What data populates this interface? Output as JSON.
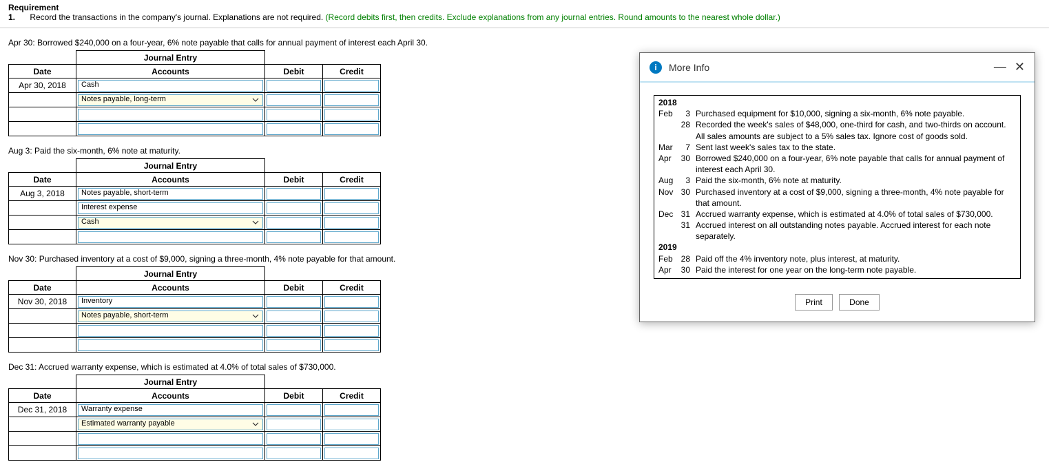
{
  "requirement": {
    "title": "Requirement",
    "num": "1.",
    "text": "Record the transactions in the company's journal. Explanations are not required. ",
    "hint": "(Record debits first, then credits. Exclude explanations from any journal entries. Round amounts to the nearest whole dollar.)"
  },
  "entries": [
    {
      "label": "Apr 30: Borrowed $240,000 on a four-year, 6% note payable that calls for annual payment of interest each April 30.",
      "title": "Journal Entry",
      "date": "Apr 30, 2018",
      "rows": [
        {
          "acct": "Cash",
          "sel": false,
          "chev": false,
          "debit": "",
          "credit": ""
        },
        {
          "acct": "Notes payable, long-term",
          "sel": true,
          "chev": true,
          "debit": "",
          "credit": ""
        },
        {
          "acct": "",
          "sel": false,
          "chev": false,
          "debit": "",
          "credit": ""
        },
        {
          "acct": "",
          "sel": false,
          "chev": false,
          "debit": "",
          "credit": ""
        }
      ]
    },
    {
      "label": "Aug 3: Paid the six-month, 6% note at maturity.",
      "title": "Journal Entry",
      "date": "Aug 3, 2018",
      "rows": [
        {
          "acct": "Notes payable, short-term",
          "sel": false,
          "chev": false,
          "debit": "",
          "credit": ""
        },
        {
          "acct": "Interest expense",
          "sel": false,
          "chev": false,
          "debit": "",
          "credit": ""
        },
        {
          "acct": "Cash",
          "sel": true,
          "chev": true,
          "debit": "",
          "credit": ""
        },
        {
          "acct": "",
          "sel": false,
          "chev": false,
          "debit": "",
          "credit": ""
        }
      ]
    },
    {
      "label": "Nov 30: Purchased inventory at a cost of $9,000, signing a three-month, 4% note payable for that amount.",
      "title": "Journal Entry",
      "date": "Nov 30, 2018",
      "rows": [
        {
          "acct": "Inventory",
          "sel": false,
          "chev": false,
          "debit": "",
          "credit": ""
        },
        {
          "acct": "Notes payable, short-term",
          "sel": true,
          "chev": true,
          "debit": "",
          "credit": ""
        },
        {
          "acct": "",
          "sel": false,
          "chev": false,
          "debit": "",
          "credit": ""
        },
        {
          "acct": "",
          "sel": false,
          "chev": false,
          "debit": "",
          "credit": ""
        }
      ]
    },
    {
      "label": "Dec 31: Accrued warranty expense, which is estimated at 4.0% of total sales of $730,000.",
      "title": "Journal Entry",
      "date": "Dec 31, 2018",
      "rows": [
        {
          "acct": "Warranty expense",
          "sel": false,
          "chev": false,
          "debit": "",
          "credit": ""
        },
        {
          "acct": "Estimated warranty payable",
          "sel": true,
          "chev": true,
          "debit": "",
          "credit": ""
        },
        {
          "acct": "",
          "sel": false,
          "chev": false,
          "debit": "",
          "credit": ""
        },
        {
          "acct": "",
          "sel": false,
          "chev": false,
          "debit": "",
          "credit": ""
        }
      ]
    }
  ],
  "tableHeaders": {
    "date": "Date",
    "accounts": "Accounts",
    "debit": "Debit",
    "credit": "Credit"
  },
  "modal": {
    "title": "More Info",
    "print": "Print",
    "done": "Done",
    "lines": [
      {
        "yr": "2018"
      },
      {
        "mon": "Feb",
        "day": "3",
        "txt": "Purchased equipment for $10,000, signing a six-month, 6% note payable."
      },
      {
        "mon": "",
        "day": "28",
        "txt": "Recorded the week's sales of $48,000, one-third for cash, and two-thirds on account. All sales amounts are subject to a 5% sales tax. Ignore cost of goods sold."
      },
      {
        "mon": "Mar",
        "day": "7",
        "txt": "Sent last week's sales tax to the state."
      },
      {
        "mon": "Apr",
        "day": "30",
        "txt": "Borrowed $240,000 on a four-year, 6% note payable that calls for annual payment of interest each April 30."
      },
      {
        "mon": "Aug",
        "day": "3",
        "txt": "Paid the six-month, 6% note at maturity."
      },
      {
        "mon": "Nov",
        "day": "30",
        "txt": "Purchased inventory at a cost of $9,000, signing a three-month, 4% note payable for that amount."
      },
      {
        "mon": "Dec",
        "day": "31",
        "txt": "Accrued warranty expense, which is estimated at 4.0% of total sales of $730,000."
      },
      {
        "mon": "",
        "day": "31",
        "txt": "Accrued interest on all outstanding notes payable. Accrued interest for each note separately."
      },
      {
        "yr": "2019"
      },
      {
        "mon": "Feb",
        "day": "28",
        "txt": "Paid off the 4% inventory note, plus interest, at maturity."
      },
      {
        "mon": "Apr",
        "day": "30",
        "txt": "Paid the interest for one year on the long-term note payable."
      }
    ]
  }
}
